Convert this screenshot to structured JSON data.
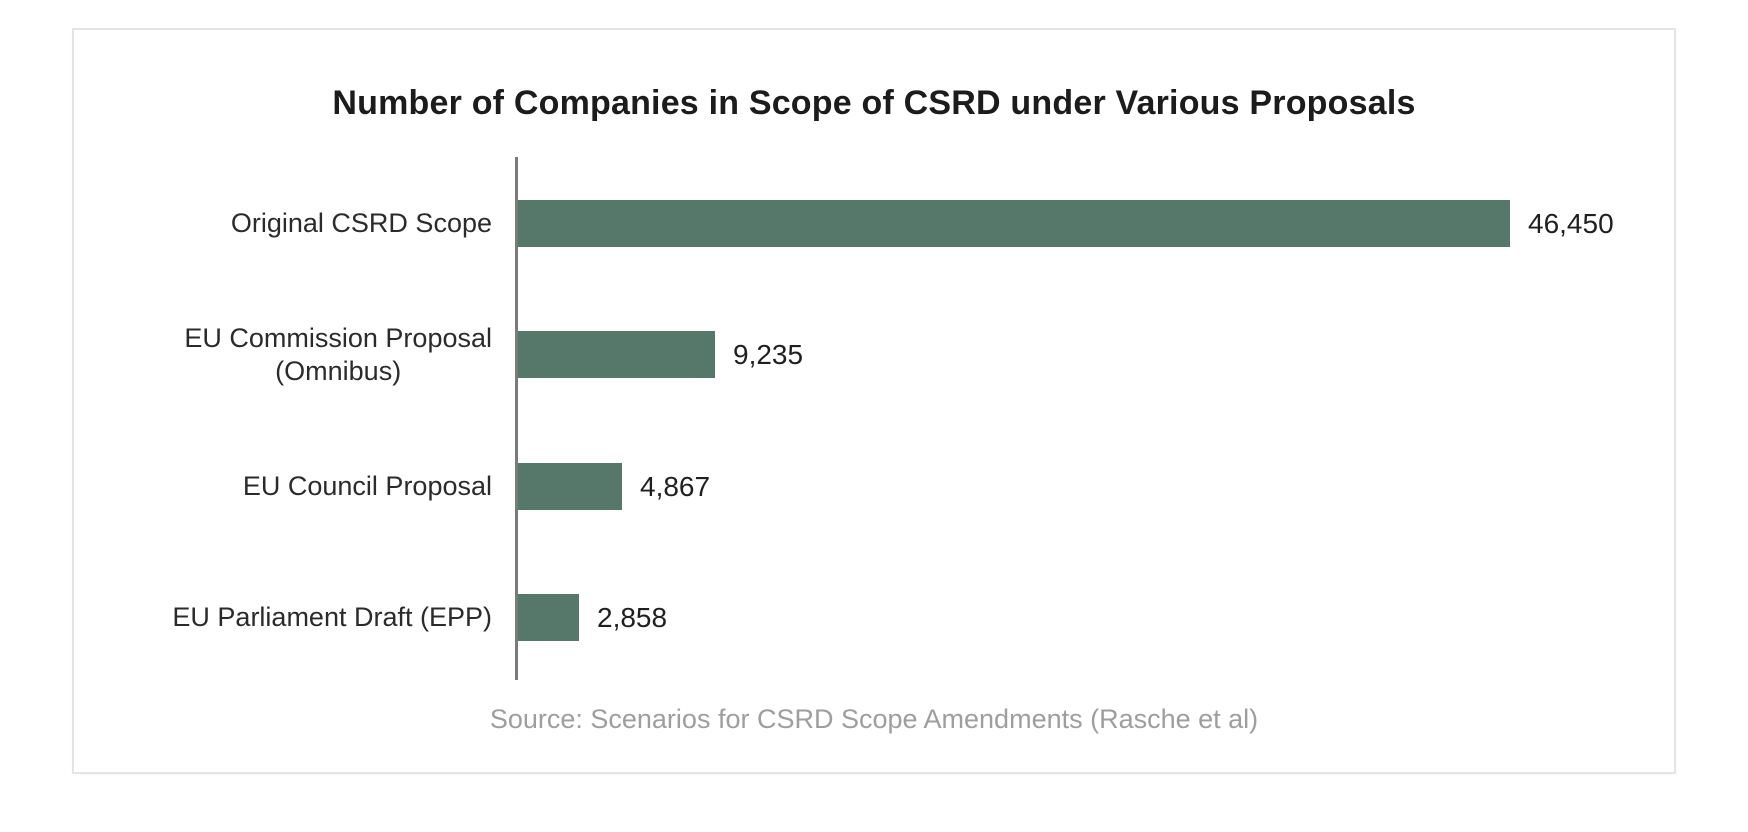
{
  "card": {
    "background": "#ffffff",
    "border_color": "#e4e4e4"
  },
  "chart_data": {
    "type": "bar",
    "orientation": "horizontal",
    "title": "Number of Companies in Scope of CSRD under Various Proposals",
    "categories": [
      "Original CSRD Scope",
      "EU Commission Proposal (Omnibus)",
      "EU Council Proposal",
      "EU Parliament Draft (EPP)"
    ],
    "category_lines": [
      [
        "Original CSRD Scope"
      ],
      [
        "EU Commission Proposal",
        "(Omnibus)"
      ],
      [
        "EU Council Proposal"
      ],
      [
        "EU Parliament Draft (EPP)"
      ]
    ],
    "values": [
      46450,
      9235,
      4867,
      2858
    ],
    "value_labels": [
      "46,450",
      "9,235",
      "4,867",
      "2,858"
    ],
    "xlim": [
      0,
      46450
    ],
    "xlabel": "",
    "ylabel": "",
    "grid": false,
    "legend": "none",
    "bar_color": "#55786B",
    "axis_color": "#7a7a7a",
    "title_color": "#1c1c1c",
    "label_color": "#2b2b2b",
    "source_color": "#9e9e9e",
    "source": "Source: Scenarios for CSRD Scope Amendments (Rasche et al)"
  }
}
